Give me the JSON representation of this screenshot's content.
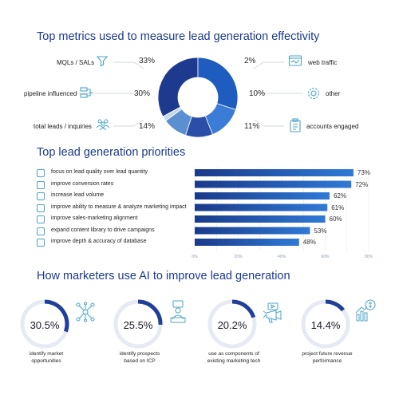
{
  "section1": {
    "title": "Top metrics used to measure lead generation effectivity",
    "left": [
      {
        "label": "MQLs / SALs",
        "pct": "33%",
        "icon": "funnel-icon"
      },
      {
        "label": "pipeline influenced",
        "pct": "30%",
        "icon": "pipeline-icon"
      },
      {
        "label": "total leads / inquiries",
        "pct": "14%",
        "icon": "people-icon"
      }
    ],
    "right": [
      {
        "label": "web traffic",
        "pct": "2%",
        "icon": "browser-icon"
      },
      {
        "label": "other",
        "pct": "10%",
        "icon": "gear-icon"
      },
      {
        "label": "accounts engaged",
        "pct": "11%",
        "icon": "clipboard-icon"
      }
    ]
  },
  "section2": {
    "title": "Top lead generation priorities",
    "items": [
      {
        "label": "focus on lead quality over lead quantity",
        "value": 73,
        "pct": "73%"
      },
      {
        "label": "improve conversion rates",
        "value": 72,
        "pct": "72%"
      },
      {
        "label": "increase lead volume",
        "value": 62,
        "pct": "62%"
      },
      {
        "label": "improve ability to measure & analyze marketing impact",
        "value": 61,
        "pct": "61%"
      },
      {
        "label": "improve sales-marketing alignment",
        "value": 60,
        "pct": "60%"
      },
      {
        "label": "expand content library to drive campaigns",
        "value": 53,
        "pct": "53%"
      },
      {
        "label": "improve depth & accuracy of database",
        "value": 48,
        "pct": "48%"
      }
    ],
    "ticks": [
      "0%",
      "20%",
      "40%",
      "60%",
      "80%"
    ]
  },
  "section3": {
    "title": "How marketers use AI to improve lead generation",
    "items": [
      {
        "value": 30.5,
        "pct": "30.5%",
        "label_line1": "identify market",
        "label_line2": "opportunities",
        "icon": "network-icon"
      },
      {
        "value": 25.5,
        "pct": "25.5%",
        "label_line1": "identify prospects",
        "label_line2": "based on ICP",
        "icon": "person-laptop-icon"
      },
      {
        "value": 20.2,
        "pct": "20.2%",
        "label_line1": "use as components of",
        "label_line2": "existing marketing tech",
        "icon": "megaphone-icon"
      },
      {
        "value": 14.4,
        "pct": "14.4%",
        "label_line1": "project future revenue",
        "label_line2": "performance",
        "icon": "revenue-chart-icon"
      }
    ]
  },
  "chart_data": [
    {
      "type": "pie",
      "title": "Top metrics used to measure lead generation effectivity",
      "categories": [
        "MQLs / SALs",
        "pipeline influenced",
        "total leads / inquiries",
        "accounts engaged",
        "other",
        "web traffic"
      ],
      "values": [
        33,
        30,
        14,
        11,
        10,
        2
      ],
      "colors": [
        "#1d3a8e",
        "#1e5cc0",
        "#3a7cd6",
        "#2b4fa8",
        "#5b8fd0",
        "#c9d6ea"
      ]
    },
    {
      "type": "bar",
      "orientation": "horizontal",
      "title": "Top lead generation priorities",
      "categories": [
        "focus on lead quality over lead quantity",
        "improve conversion rates",
        "increase lead volume",
        "improve ability to measure & analyze marketing impact",
        "improve sales-marketing alignment",
        "expand content library to drive campaigns",
        "improve depth & accuracy of database"
      ],
      "values": [
        73,
        72,
        62,
        61,
        60,
        53,
        48
      ],
      "xlim": [
        0,
        80
      ],
      "grid": true
    },
    {
      "type": "pie",
      "title": "How marketers use AI to improve lead generation",
      "categories": [
        "identify market opportunities",
        "identify prospects based on ICP",
        "use as components of existing marketing tech",
        "project future revenue performance"
      ],
      "values": [
        30.5,
        25.5,
        20.2,
        14.4
      ]
    }
  ],
  "colors": {
    "heading": "#1b3a8f",
    "bar_dark": "#1a3a8a",
    "bar_light": "#2f7ad6",
    "ring_fill": "#1f3f99",
    "ring_track": "#e6ebf3",
    "icon": "#4aa3c8"
  }
}
